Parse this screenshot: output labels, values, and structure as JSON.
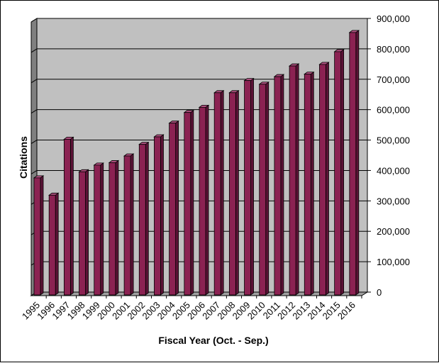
{
  "chart_data": {
    "type": "bar",
    "title": "",
    "xlabel": "Fiscal Year (Oct. - Sep.)",
    "ylabel": "Citations",
    "categories": [
      "1995",
      "1996",
      "1997",
      "1998",
      "1999",
      "2000",
      "2001",
      "2002",
      "2003",
      "2004",
      "2005",
      "2006",
      "2007",
      "2008",
      "2009",
      "2010",
      "2011",
      "2012",
      "2013",
      "2014",
      "2015",
      "2016"
    ],
    "values": [
      385000,
      328000,
      512000,
      405000,
      427000,
      435000,
      457000,
      495000,
      520000,
      565000,
      600000,
      617000,
      665000,
      665000,
      705000,
      693000,
      718000,
      753000,
      726000,
      758000,
      800000,
      863000
    ],
    "yticks": [
      "0",
      "100,000",
      "200,000",
      "300,000",
      "400,000",
      "500,000",
      "600,000",
      "700,000",
      "800,000",
      "900,000"
    ],
    "ylim": [
      0,
      900000
    ],
    "grid": true,
    "legend": "none",
    "colors": {
      "bar_front": "#8B2252",
      "bar_side": "#5C1236",
      "bar_top": "#B05080",
      "plot_back": "#C0C0C0",
      "side_wall": "#808080",
      "floor": "#A0A0A0"
    }
  }
}
